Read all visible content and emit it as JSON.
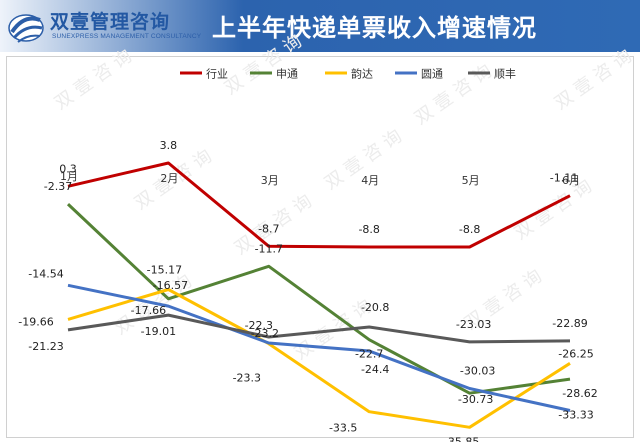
{
  "header": {
    "logo_text": "双壹管理咨询",
    "logo_sub": "SUNEXPRESS MANAGEMENT CONSULTANCY",
    "title": "上半年快递单票收入增速情况"
  },
  "watermark": "双 壹 咨 询",
  "colors": {
    "header_blue": "#2f6ab5",
    "行业": "#c00000",
    "申通": "#548235",
    "韵达": "#ffc000",
    "圆通": "#4472c4",
    "顺丰": "#595959"
  },
  "chart_data": {
    "type": "line",
    "title": "上半年快递单票收入增速情况",
    "categories": [
      "1月",
      "2月",
      "3月",
      "4月",
      "5月",
      "6月"
    ],
    "legend_position": "top",
    "grid": false,
    "series": [
      {
        "name": "行业",
        "values": [
          0.3,
          3.8,
          -8.7,
          -8.8,
          -8.8,
          -1.11
        ],
        "labels": [
          "0.3",
          "3.8",
          "-8.7",
          "-8.8",
          "-8.8",
          "-1.11"
        ]
      },
      {
        "name": "申通",
        "values": [
          -2.37,
          -16.57,
          -11.7,
          -22.7,
          -30.73,
          -28.62
        ],
        "labels": [
          "-2.37",
          "-16.57",
          "-11.7",
          "-22.7",
          "-30.73",
          "-28.62"
        ]
      },
      {
        "name": "韵达",
        "values": [
          -19.66,
          -15.17,
          -23.3,
          -33.5,
          -35.85,
          -26.25
        ],
        "labels": [
          "-19.66",
          "-15.17",
          "-23.3",
          "-33.5",
          "-35.85",
          "-26.25"
        ]
      },
      {
        "name": "圆通",
        "values": [
          -14.54,
          -17.66,
          -23.2,
          -24.4,
          -30.03,
          -33.33
        ],
        "labels": [
          "-14.54",
          "-17.66",
          "-23.2",
          "-24.4",
          "-30.03",
          "-33.33"
        ]
      },
      {
        "name": "顺丰",
        "values": [
          -21.23,
          -19.01,
          -22.3,
          -20.8,
          -23.03,
          -22.89
        ],
        "labels": [
          "-21.23",
          "-19.01",
          "-22.3",
          "-20.8",
          "-23.03",
          "-22.89"
        ]
      }
    ]
  }
}
